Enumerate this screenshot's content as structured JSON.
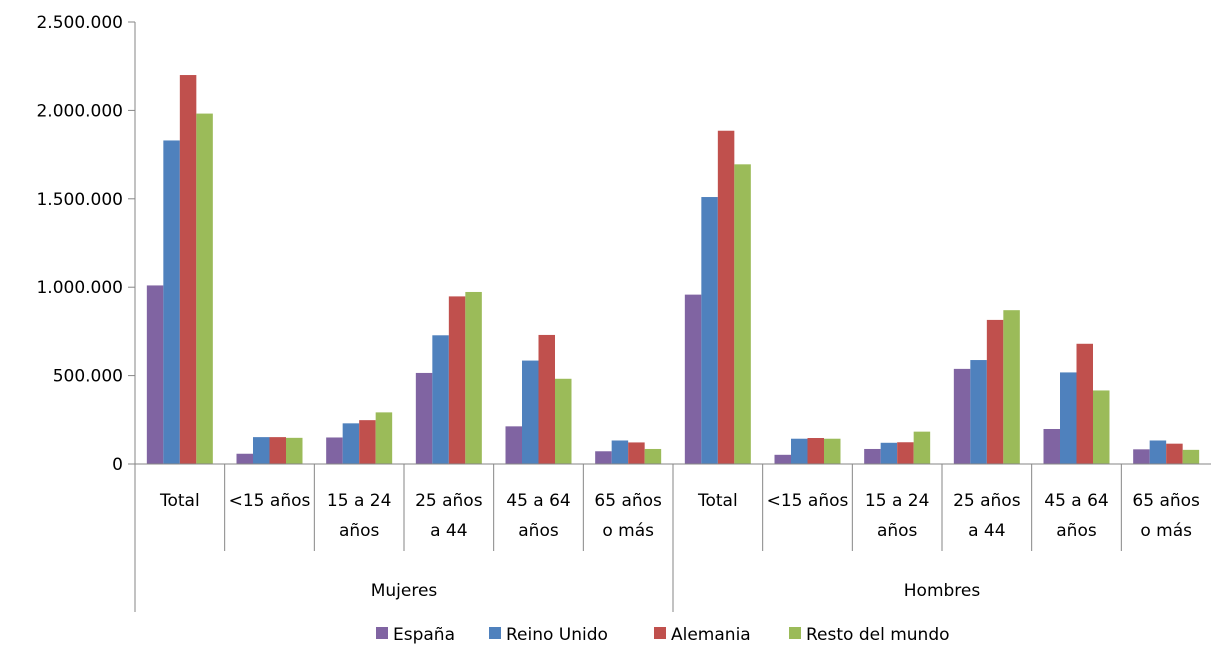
{
  "chart_data": {
    "type": "bar",
    "title": "",
    "xlabel": "",
    "ylabel": "",
    "ylim": [
      0,
      2500000
    ],
    "yticks": [
      0,
      500000,
      1000000,
      1500000,
      2000000,
      2500000
    ],
    "ytick_labels": [
      "0",
      "500.000",
      "1.000.000",
      "1.500.000",
      "2.000.000",
      "2.500.000"
    ],
    "grid": false,
    "legend_position": "bottom",
    "groups": [
      {
        "label": "Mujeres",
        "categories": [
          "Total",
          "<15 años",
          "15 a 24 años",
          "25 años a 44",
          "45 a 64 años",
          "65 años o más"
        ]
      },
      {
        "label": "Hombres",
        "categories": [
          "Total",
          "<15 años",
          "15 a 24 años",
          "25 años a 44",
          "45 a 64 años",
          "65 años o más"
        ]
      }
    ],
    "category_lines": [
      [
        "Total"
      ],
      [
        "<15 años"
      ],
      [
        "15 a 24",
        "años"
      ],
      [
        "25 años",
        "a 44"
      ],
      [
        "45 a 64",
        "años"
      ],
      [
        "65 años",
        "o más"
      ],
      [
        "Total"
      ],
      [
        "<15 años"
      ],
      [
        "15 a 24",
        "años"
      ],
      [
        "25 años",
        "a 44"
      ],
      [
        "45 a 64",
        "años"
      ],
      [
        "65 años",
        "o más"
      ]
    ],
    "series": [
      {
        "name": "España",
        "color": "#8064A2",
        "values": [
          1010000,
          58000,
          150000,
          515000,
          213000,
          72000,
          958000,
          52000,
          85000,
          538000,
          198000,
          83000
        ]
      },
      {
        "name": "Reino Unido",
        "color": "#4F81BD",
        "values": [
          1830000,
          152000,
          230000,
          728000,
          585000,
          133000,
          1510000,
          143000,
          120000,
          588000,
          518000,
          133000
        ]
      },
      {
        "name": "Alemania",
        "color": "#C0504D",
        "values": [
          2200000,
          152000,
          248000,
          948000,
          730000,
          122000,
          1885000,
          147000,
          123000,
          815000,
          680000,
          115000
        ]
      },
      {
        "name": "Resto del mundo",
        "color": "#9BBB59",
        "values": [
          1982000,
          148000,
          292000,
          973000,
          482000,
          85000,
          1695000,
          143000,
          183000,
          870000,
          416000,
          80000
        ]
      }
    ]
  }
}
